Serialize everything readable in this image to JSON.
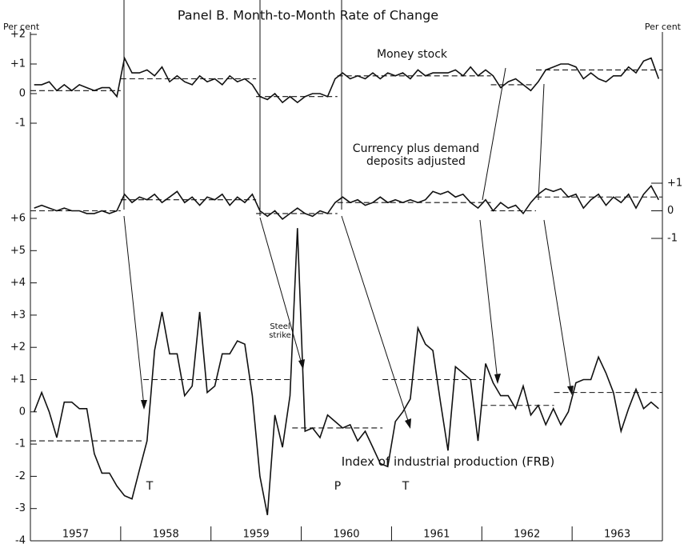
{
  "chart_data": {
    "type": "line",
    "title": "Panel B.  Month-to-Month Rate of Change",
    "left_axis_label": "Per cent",
    "right_axis_label": "Per cent",
    "xlim": [
      1957,
      1964
    ],
    "xticks": [
      1957,
      1958,
      1959,
      1960,
      1961,
      1962,
      1963
    ],
    "x": [
      1957.042,
      1957.125,
      1957.208,
      1957.292,
      1957.375,
      1957.458,
      1957.542,
      1957.625,
      1957.708,
      1957.792,
      1957.875,
      1957.958,
      1958.042,
      1958.125,
      1958.208,
      1958.292,
      1958.375,
      1958.458,
      1958.542,
      1958.625,
      1958.708,
      1958.792,
      1958.875,
      1958.958,
      1959.042,
      1959.125,
      1959.208,
      1959.292,
      1959.375,
      1959.458,
      1959.542,
      1959.625,
      1959.708,
      1959.792,
      1959.875,
      1959.958,
      1960.042,
      1960.125,
      1960.208,
      1960.292,
      1960.375,
      1960.458,
      1960.542,
      1960.625,
      1960.708,
      1960.792,
      1960.875,
      1960.958,
      1961.042,
      1961.125,
      1961.208,
      1961.292,
      1961.375,
      1961.458,
      1961.542,
      1961.625,
      1961.708,
      1961.792,
      1961.875,
      1961.958,
      1962.042,
      1962.125,
      1962.208,
      1962.292,
      1962.375,
      1962.458,
      1962.542,
      1962.625,
      1962.708,
      1962.792,
      1962.875,
      1962.958,
      1963.042,
      1963.125,
      1963.208,
      1963.292,
      1963.375,
      1963.458,
      1963.542,
      1963.625,
      1963.708,
      1963.792,
      1963.875,
      1963.958
    ],
    "panels": [
      {
        "axis": "left",
        "ylim": [
          -1.5,
          2
        ],
        "yticks": [
          {
            "value": 2,
            "label": "+2"
          },
          {
            "value": 1,
            "label": "+1"
          },
          0,
          -1
        ],
        "series": [
          {
            "name": "Money stock",
            "color": "#111111",
            "values": [
              0.3,
              0.3,
              0.4,
              0.1,
              0.3,
              0.1,
              0.3,
              0.2,
              0.1,
              0.2,
              0.2,
              -0.1,
              1.2,
              0.7,
              0.7,
              0.8,
              0.6,
              0.9,
              0.4,
              0.6,
              0.4,
              0.3,
              0.6,
              0.4,
              0.5,
              0.3,
              0.6,
              0.4,
              0.5,
              0.3,
              -0.1,
              -0.2,
              0.0,
              -0.3,
              -0.1,
              -0.3,
              -0.1,
              0.0,
              0.0,
              -0.1,
              0.5,
              0.7,
              0.5,
              0.6,
              0.5,
              0.7,
              0.5,
              0.7,
              0.6,
              0.7,
              0.5,
              0.8,
              0.6,
              0.7,
              0.7,
              0.7,
              0.8,
              0.6,
              0.9,
              0.6,
              0.8,
              0.6,
              0.2,
              0.4,
              0.5,
              0.3,
              0.1,
              0.4,
              0.8,
              0.9,
              1.0,
              1.0,
              0.9,
              0.5,
              0.7,
              0.5,
              0.4,
              0.6,
              0.6,
              0.9,
              0.7,
              1.1,
              1.2,
              0.5
            ],
            "steps": [
              {
                "x": [
                  1957,
                  1958
                ],
                "value": 0.1
              },
              {
                "x": [
                  1958,
                  1959.5
                ],
                "value": 0.5
              },
              {
                "x": [
                  1959.5,
                  1960.4
                ],
                "value": -0.1
              },
              {
                "x": [
                  1960.4,
                  1962.1
                ],
                "value": 0.6
              },
              {
                "x": [
                  1962.1,
                  1962.6
                ],
                "value": 0.3
              },
              {
                "x": [
                  1962.6,
                  1964
                ],
                "value": 0.8
              }
            ]
          }
        ]
      },
      {
        "axis": "right",
        "ylim": [
          -1,
          1
        ],
        "yticks": [
          {
            "value": 1,
            "label": "+1"
          },
          0,
          -1
        ],
        "series": [
          {
            "name": "Currency plus demand deposits adjusted",
            "color": "#111111",
            "values": [
              0.1,
              0.2,
              0.1,
              0.0,
              0.1,
              0.0,
              0.0,
              -0.1,
              -0.1,
              0.0,
              -0.1,
              0.0,
              0.6,
              0.3,
              0.5,
              0.4,
              0.6,
              0.3,
              0.5,
              0.7,
              0.3,
              0.5,
              0.2,
              0.5,
              0.4,
              0.6,
              0.2,
              0.5,
              0.3,
              0.6,
              0.0,
              -0.2,
              0.0,
              -0.3,
              -0.1,
              0.1,
              -0.1,
              -0.2,
              0.0,
              -0.1,
              0.3,
              0.5,
              0.3,
              0.4,
              0.2,
              0.3,
              0.5,
              0.3,
              0.4,
              0.3,
              0.4,
              0.3,
              0.4,
              0.7,
              0.6,
              0.7,
              0.5,
              0.6,
              0.3,
              0.1,
              0.4,
              0.0,
              0.3,
              0.1,
              0.2,
              -0.1,
              0.3,
              0.6,
              0.8,
              0.7,
              0.8,
              0.5,
              0.6,
              0.1,
              0.4,
              0.6,
              0.2,
              0.5,
              0.3,
              0.6,
              0.1,
              0.6,
              0.9,
              0.4
            ],
            "steps": [
              {
                "x": [
                  1957,
                  1958
                ],
                "value": 0.0
              },
              {
                "x": [
                  1958,
                  1959.5
                ],
                "value": 0.4
              },
              {
                "x": [
                  1959.5,
                  1960.4
                ],
                "value": -0.1
              },
              {
                "x": [
                  1960.4,
                  1962.1
                ],
                "value": 0.3
              },
              {
                "x": [
                  1962.1,
                  1962.6
                ],
                "value": 0.0
              },
              {
                "x": [
                  1962.6,
                  1964
                ],
                "value": 0.5
              }
            ]
          }
        ]
      },
      {
        "axis": "left",
        "ylim": [
          -4,
          6
        ],
        "yticks": [
          {
            "value": 6,
            "label": "+6"
          },
          {
            "value": 5,
            "label": "+5"
          },
          {
            "value": 4,
            "label": "+4"
          },
          {
            "value": 3,
            "label": "+3"
          },
          {
            "value": 2,
            "label": "+2"
          },
          {
            "value": 1,
            "label": "+1"
          },
          0,
          -1,
          -2,
          -3,
          -4
        ],
        "series": [
          {
            "name": "Index of industrial production (FRB)",
            "color": "#111111",
            "values": [
              0.0,
              0.6,
              0.0,
              -0.8,
              0.3,
              0.3,
              0.1,
              0.1,
              -1.3,
              -1.9,
              -1.9,
              -2.3,
              -2.6,
              -2.7,
              -1.8,
              -0.9,
              1.9,
              3.1,
              1.8,
              1.8,
              0.5,
              0.8,
              3.1,
              0.6,
              0.8,
              1.8,
              1.8,
              2.2,
              2.1,
              0.5,
              -2.0,
              -3.2,
              -0.1,
              -1.1,
              0.5,
              5.7,
              -0.6,
              -0.5,
              -0.8,
              -0.1,
              -0.3,
              -0.5,
              -0.4,
              -0.9,
              -0.6,
              -1.1,
              -1.6,
              -1.7,
              -0.3,
              0.0,
              0.4,
              2.6,
              2.1,
              1.9,
              0.3,
              -1.2,
              1.4,
              1.2,
              1.0,
              -0.9,
              1.5,
              0.9,
              0.5,
              0.5,
              0.1,
              0.8,
              -0.1,
              0.2,
              -0.4,
              0.1,
              -0.4,
              0.0,
              0.9,
              1.0,
              1.0,
              1.7,
              1.2,
              0.6,
              -0.6,
              0.1,
              0.7,
              0.1,
              0.3,
              0.1
            ],
            "steps": [
              {
                "x": [
                  1957,
                  1958.25
                ],
                "value": -0.9
              },
              {
                "x": [
                  1958.25,
                  1959.9
                ],
                "value": 1.0
              },
              {
                "x": [
                  1959.9,
                  1960.9
                ],
                "value": -0.5
              },
              {
                "x": [
                  1960.9,
                  1962
                ],
                "value": 1.0
              },
              {
                "x": [
                  1962,
                  1962.8
                ],
                "value": 0.2
              },
              {
                "x": [
                  1962.8,
                  1964
                ],
                "value": 0.6
              }
            ]
          }
        ]
      }
    ],
    "annotations": [
      "Steel strike",
      "T",
      "P",
      "T"
    ]
  }
}
